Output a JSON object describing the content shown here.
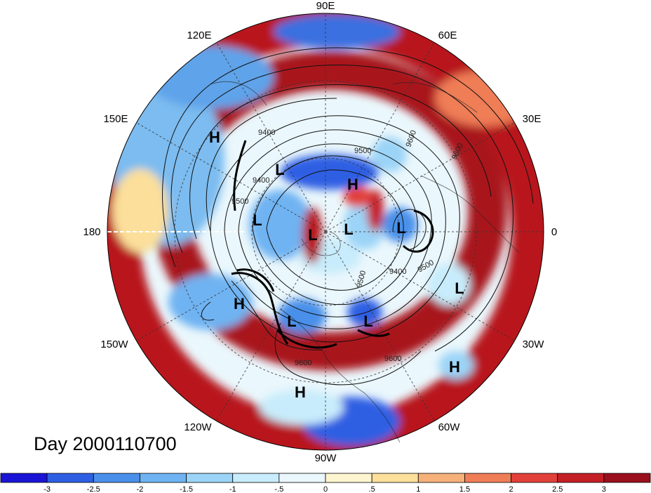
{
  "map": {
    "longitude_labels": [
      "90E",
      "60E",
      "30E",
      "0",
      "30W",
      "60W",
      "90W",
      "120W",
      "150W",
      "180",
      "150E",
      "120E"
    ],
    "pressure_systems": [
      {
        "type": "H"
      },
      {
        "type": "L"
      },
      {
        "type": "H"
      },
      {
        "type": "L"
      },
      {
        "type": "L"
      },
      {
        "type": "L"
      },
      {
        "type": "L"
      },
      {
        "type": "L"
      },
      {
        "type": "H"
      },
      {
        "type": "L"
      },
      {
        "type": "L"
      },
      {
        "type": "H"
      },
      {
        "type": "H"
      },
      {
        "type": "L"
      }
    ],
    "contour_labels": [
      "9400",
      "9500",
      "9600",
      "9600",
      "9400",
      "9500",
      "9600",
      "9500",
      "9400",
      "9500",
      "9600"
    ]
  },
  "date_label": "Day 2000110700",
  "colorbar": {
    "levels": [
      "-3",
      "-2.5",
      "-2",
      "-1.5",
      "-1",
      "-.5",
      "0",
      ".5",
      "1",
      "1.5",
      "2",
      "2.5",
      "3"
    ],
    "colors": [
      "#1a14d6",
      "#2e5fe3",
      "#4a90ea",
      "#6fb3f2",
      "#9bd4f7",
      "#c8ecfb",
      "#eaf7fc",
      "#fdf5d0",
      "#fbdf9a",
      "#f6b07a",
      "#ef7d56",
      "#e2403a",
      "#c41f27",
      "#9a0f1d"
    ]
  }
}
